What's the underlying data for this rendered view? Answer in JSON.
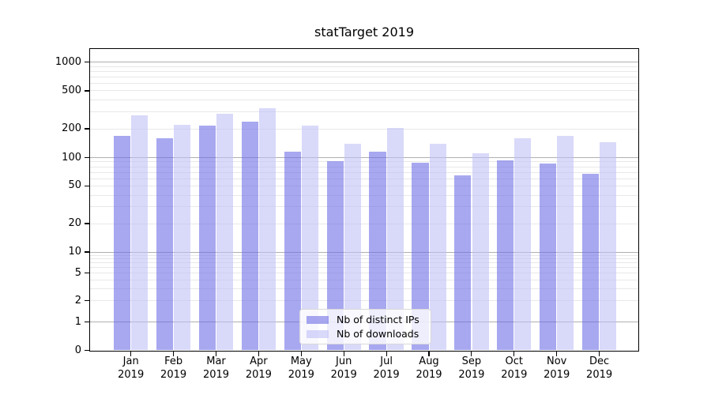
{
  "chart_data": {
    "type": "bar",
    "title": "statTarget 2019",
    "categories": [
      "Jan",
      "Feb",
      "Mar",
      "Apr",
      "May",
      "Jun",
      "Jul",
      "Aug",
      "Sep",
      "Oct",
      "Nov",
      "Dec"
    ],
    "year_label": "2019",
    "series": [
      {
        "name": "Nb of distinct IPs",
        "key": "distinct-ips",
        "color": "rgba(110,110,230,0.6)",
        "solid_color": "#a8a8f0",
        "values": [
          170,
          160,
          215,
          238,
          115,
          92,
          115,
          88,
          65,
          94,
          87,
          67
        ]
      },
      {
        "name": "Nb of downloads",
        "key": "downloads",
        "color": "rgba(192,192,247,0.6)",
        "solid_color": "#d9d9fa",
        "values": [
          275,
          220,
          285,
          330,
          215,
          140,
          205,
          140,
          110,
          160,
          170,
          145
        ]
      }
    ],
    "y_ticks": [
      0,
      1,
      2,
      5,
      10,
      20,
      50,
      100,
      200,
      500,
      1000
    ],
    "y_scale": "symlog",
    "ylim": [
      0,
      1400
    ],
    "grid": true,
    "legend_position": "lower center",
    "colors": {
      "major_grid": "#b0b0b0",
      "minor_grid": "#e8e8e8",
      "spine": "#000000",
      "text": "#000000"
    }
  }
}
